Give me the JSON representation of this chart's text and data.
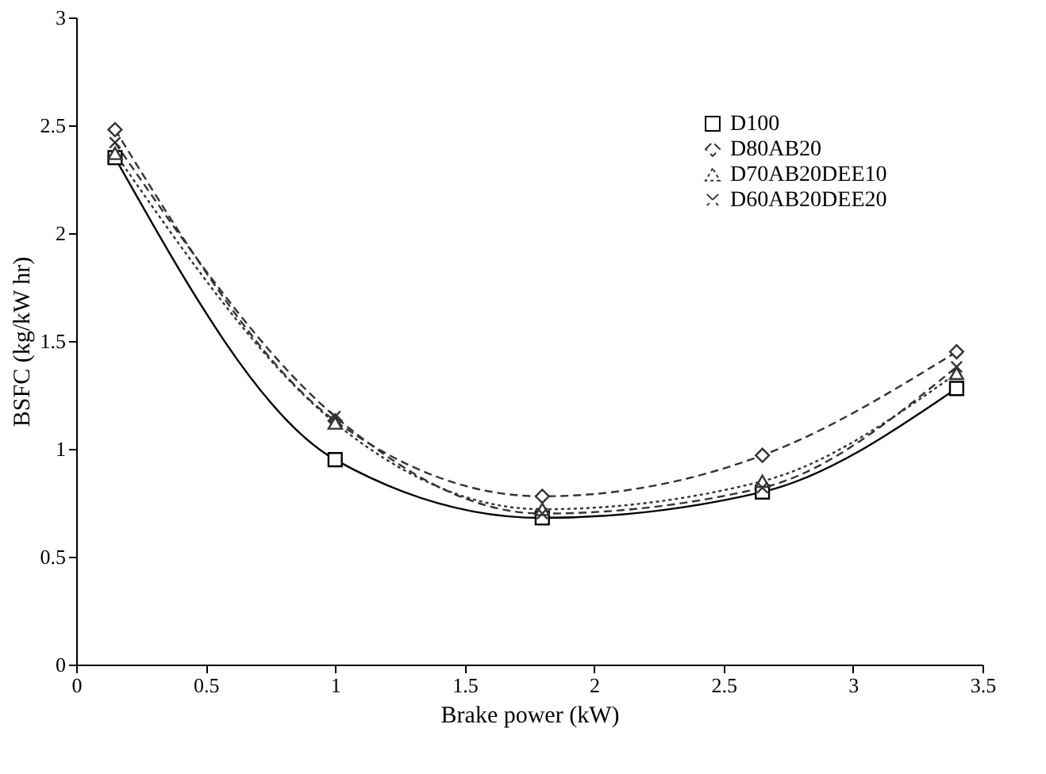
{
  "chart_data": {
    "type": "line",
    "xlabel": "Brake power (kW)",
    "ylabel": "BSFC (kg/kW hr)",
    "x": [
      0.15,
      1.0,
      1.8,
      2.65,
      3.4
    ],
    "series": [
      {
        "name": "D100",
        "color": "#000000",
        "marker": "square",
        "line_style": "solid",
        "values": [
          2.35,
          0.95,
          0.68,
          0.8,
          1.28
        ]
      },
      {
        "name": "D80AB20",
        "color": "#333333",
        "marker": "diamond",
        "line_style": "dashed",
        "values": [
          2.48,
          1.13,
          0.78,
          0.97,
          1.45
        ]
      },
      {
        "name": "D70AB20DEE10",
        "color": "#333333",
        "marker": "triangle",
        "line_style": "dotted",
        "values": [
          2.37,
          1.12,
          0.72,
          0.85,
          1.35
        ]
      },
      {
        "name": "D60AB20DEE20",
        "color": "#333333",
        "marker": "cross",
        "line_style": "dashed",
        "values": [
          2.42,
          1.15,
          0.7,
          0.82,
          1.38
        ]
      }
    ],
    "xlim": [
      0,
      3.5
    ],
    "xticks": [
      0,
      0.5,
      1,
      1.5,
      2,
      2.5,
      3,
      3.5
    ],
    "ylim": [
      0,
      3
    ],
    "yticks": [
      0,
      0.5,
      1,
      1.5,
      2,
      2.5,
      3
    ],
    "grid": false,
    "legend": "top right"
  }
}
